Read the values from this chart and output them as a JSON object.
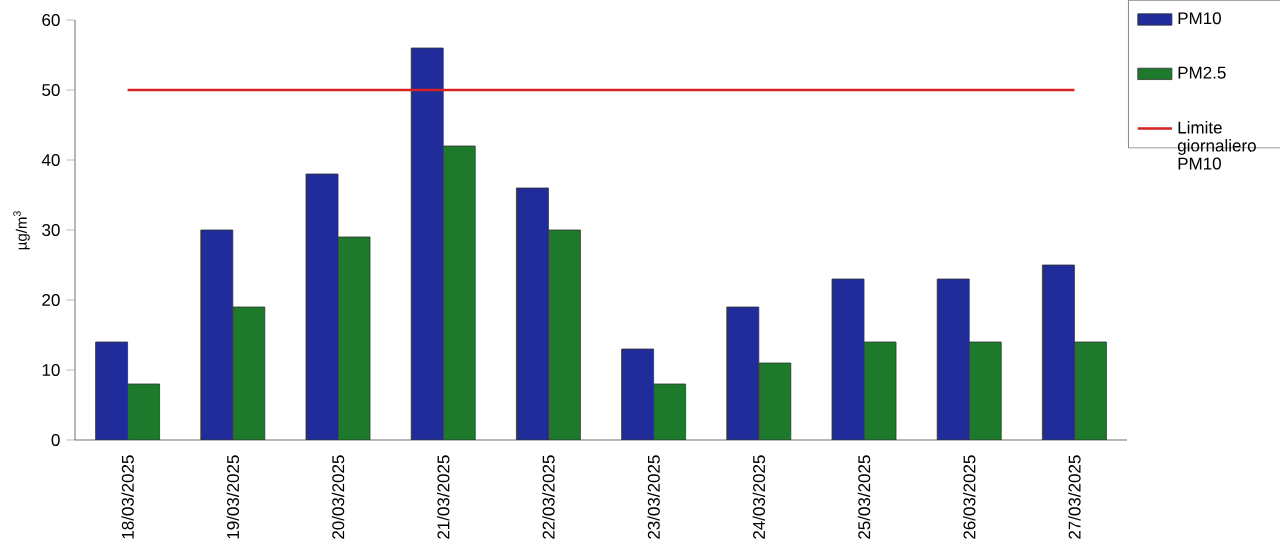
{
  "chart_data": {
    "type": "bar",
    "ylabel": "µg/m$^{3}$",
    "categories": [
      "18/03/2025",
      "19/03/2025",
      "20/03/2025",
      "21/03/2025",
      "22/03/2025",
      "23/03/2025",
      "24/03/2025",
      "25/03/2025",
      "26/03/2025",
      "27/03/2025"
    ],
    "series": [
      {
        "name": "PM10",
        "color": "#1f2c99",
        "values": [
          14,
          30,
          38,
          56,
          36,
          13,
          19,
          23,
          23,
          25
        ]
      },
      {
        "name": "PM2.5",
        "color": "#1d7a2c",
        "values": [
          8,
          19,
          29,
          42,
          30,
          8,
          11,
          14,
          14,
          14
        ]
      },
      {
        "name": "Limite giornaliero PM10",
        "type": "line",
        "color": "#d62222",
        "values": [
          50,
          50,
          50,
          50,
          50,
          50,
          50,
          50,
          50,
          50
        ]
      }
    ],
    "ylim": [
      0,
      60
    ],
    "yticks": [
      0,
      10,
      20,
      30,
      40,
      50,
      60
    ],
    "legend": "right"
  }
}
